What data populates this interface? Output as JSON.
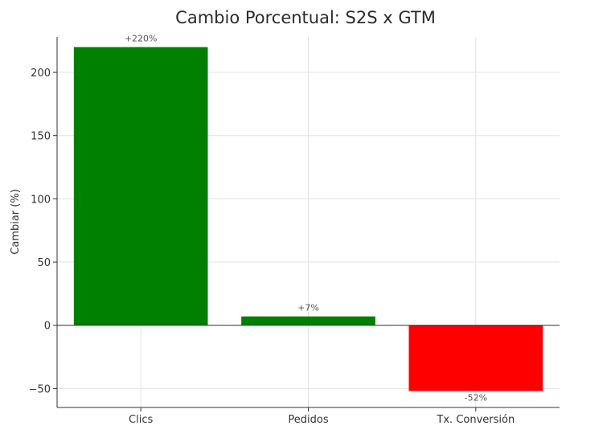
{
  "chart_data": {
    "type": "bar",
    "title": "Cambio Porcentual: S2S x GTM",
    "xlabel": "",
    "ylabel": "Cambiar (%)",
    "categories": [
      "Clics",
      "Pedidos",
      "Tx. Conversión"
    ],
    "values": [
      220,
      7,
      -52
    ],
    "data_labels": [
      "+220%",
      "+7%",
      "-52%"
    ],
    "bar_colors": [
      "#008000",
      "#008000",
      "#ff0000"
    ],
    "ylim": [
      -65,
      228
    ],
    "yticks": [
      -50,
      0,
      50,
      100,
      150,
      200
    ],
    "ytick_labels": [
      "−50",
      "0",
      "50",
      "100",
      "150",
      "200"
    ],
    "grid": true,
    "legend": "none"
  }
}
